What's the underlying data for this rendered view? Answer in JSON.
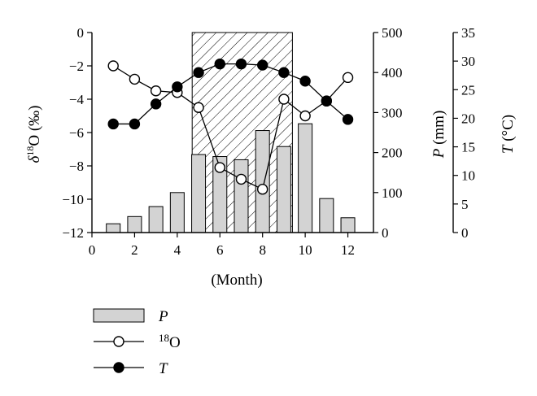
{
  "chart_data": {
    "type": "bar+line",
    "x": [
      1,
      2,
      3,
      4,
      5,
      6,
      7,
      8,
      9,
      10,
      11,
      12
    ],
    "xlabel": "(Month)",
    "xticks": [
      "0",
      "2",
      "4",
      "6",
      "8",
      "10",
      "12"
    ],
    "xlim": [
      0,
      13.2
    ],
    "shaded_region": {
      "x_start": 4.7,
      "x_end": 9.4,
      "pattern": "diagonal-hatch"
    },
    "axes": {
      "left": {
        "label_main": "δ",
        "label_sup": "18",
        "label_rest": "O (‰)",
        "ylim": [
          -12,
          0
        ],
        "ticks": [
          "0",
          "−2",
          "−4",
          "−6",
          "−8",
          "−10",
          "−12"
        ]
      },
      "right1": {
        "label_italic": "P",
        "label_rest": " (mm)",
        "ylim": [
          0,
          500
        ],
        "ticks": [
          "500",
          "400",
          "300",
          "200",
          "100",
          "0"
        ]
      },
      "right2": {
        "label_italic": "T",
        "label_rest": " (°C)",
        "ylim": [
          0,
          35
        ],
        "ticks": [
          "35",
          "30",
          "25",
          "20",
          "15",
          "10",
          "5",
          "0"
        ]
      }
    },
    "series": [
      {
        "name": "P",
        "type": "bar",
        "axis": "right1",
        "values": [
          22,
          40,
          65,
          100,
          195,
          190,
          182,
          255,
          215,
          272,
          85,
          37
        ]
      },
      {
        "name": "18O",
        "type": "line",
        "marker": "open-circle",
        "axis": "left",
        "values": [
          -2.0,
          -2.8,
          -3.5,
          -3.6,
          -4.5,
          -8.1,
          -8.8,
          -9.4,
          -4.0,
          -5.0,
          -4.1,
          -2.7
        ]
      },
      {
        "name": "T",
        "type": "line",
        "marker": "filled-circle",
        "axis": "right2",
        "values": [
          19.0,
          19.0,
          22.5,
          25.5,
          28.0,
          29.5,
          29.5,
          29.3,
          28.0,
          26.5,
          23.0,
          19.8
        ]
      }
    ],
    "legend": [
      {
        "label_italic": "P",
        "label_sup": "",
        "label_rest": ""
      },
      {
        "label_italic": "",
        "label_sup": "18",
        "label_rest": "O"
      },
      {
        "label_italic": "T",
        "label_sup": "",
        "label_rest": ""
      }
    ]
  }
}
